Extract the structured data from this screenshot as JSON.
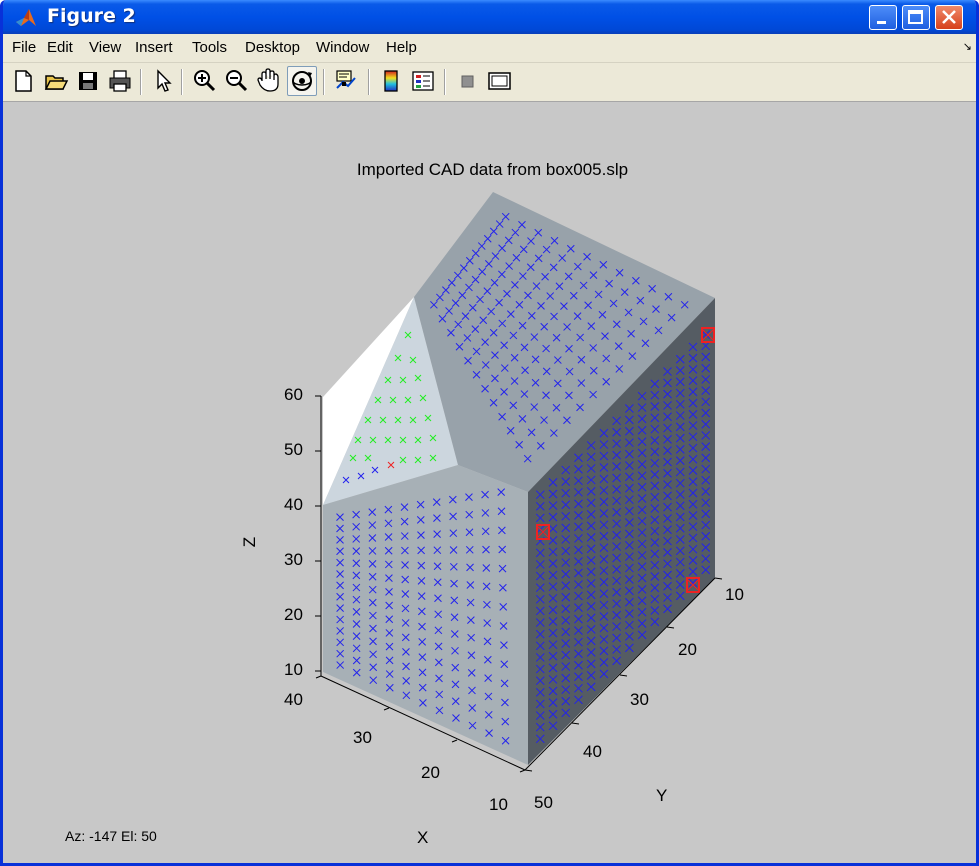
{
  "window": {
    "title": "Figure 2",
    "controls": [
      "minimize",
      "maximize",
      "close"
    ]
  },
  "menubar": {
    "items": [
      "File",
      "Edit",
      "View",
      "Insert",
      "Tools",
      "Desktop",
      "Window",
      "Help"
    ]
  },
  "toolbar": {
    "tools": [
      {
        "name": "new-figure-icon",
        "state": "normal"
      },
      {
        "name": "open-file-icon",
        "state": "normal"
      },
      {
        "name": "save-icon",
        "state": "normal"
      },
      {
        "name": "print-icon",
        "state": "normal"
      },
      {
        "name": "edit-plot-arrow-icon",
        "state": "normal"
      },
      {
        "name": "zoom-in-icon",
        "state": "normal"
      },
      {
        "name": "zoom-out-icon",
        "state": "normal"
      },
      {
        "name": "pan-hand-icon",
        "state": "normal"
      },
      {
        "name": "rotate-3d-icon",
        "state": "active"
      },
      {
        "name": "data-cursor-icon",
        "state": "normal"
      },
      {
        "name": "colorbar-icon",
        "state": "normal"
      },
      {
        "name": "legend-icon",
        "state": "normal"
      },
      {
        "name": "hide-plot-tools-icon",
        "state": "normal"
      },
      {
        "name": "show-plot-tools-icon",
        "state": "normal"
      }
    ]
  },
  "plot": {
    "title": "Imported CAD data from box005.slp",
    "xlabel": "X",
    "ylabel": "Y",
    "zlabel": "Z",
    "z_ticks": [
      "60",
      "50",
      "40",
      "30",
      "20",
      "10"
    ],
    "x_ticks": [
      "40",
      "30",
      "20",
      "10"
    ],
    "y_ticks": [
      "10",
      "20",
      "30",
      "40",
      "50"
    ],
    "face_colors": {
      "front": "#a7b0b6",
      "top": "#98a2aa",
      "side": "#555c63",
      "slope": "#ccd6de",
      "lit": "#ffffff"
    },
    "marker_colors": {
      "main": "#2222ee",
      "slope": "#22ee22",
      "highlight": "#ee2222"
    }
  },
  "status": {
    "rotation": "Az: -147 El:   50"
  }
}
